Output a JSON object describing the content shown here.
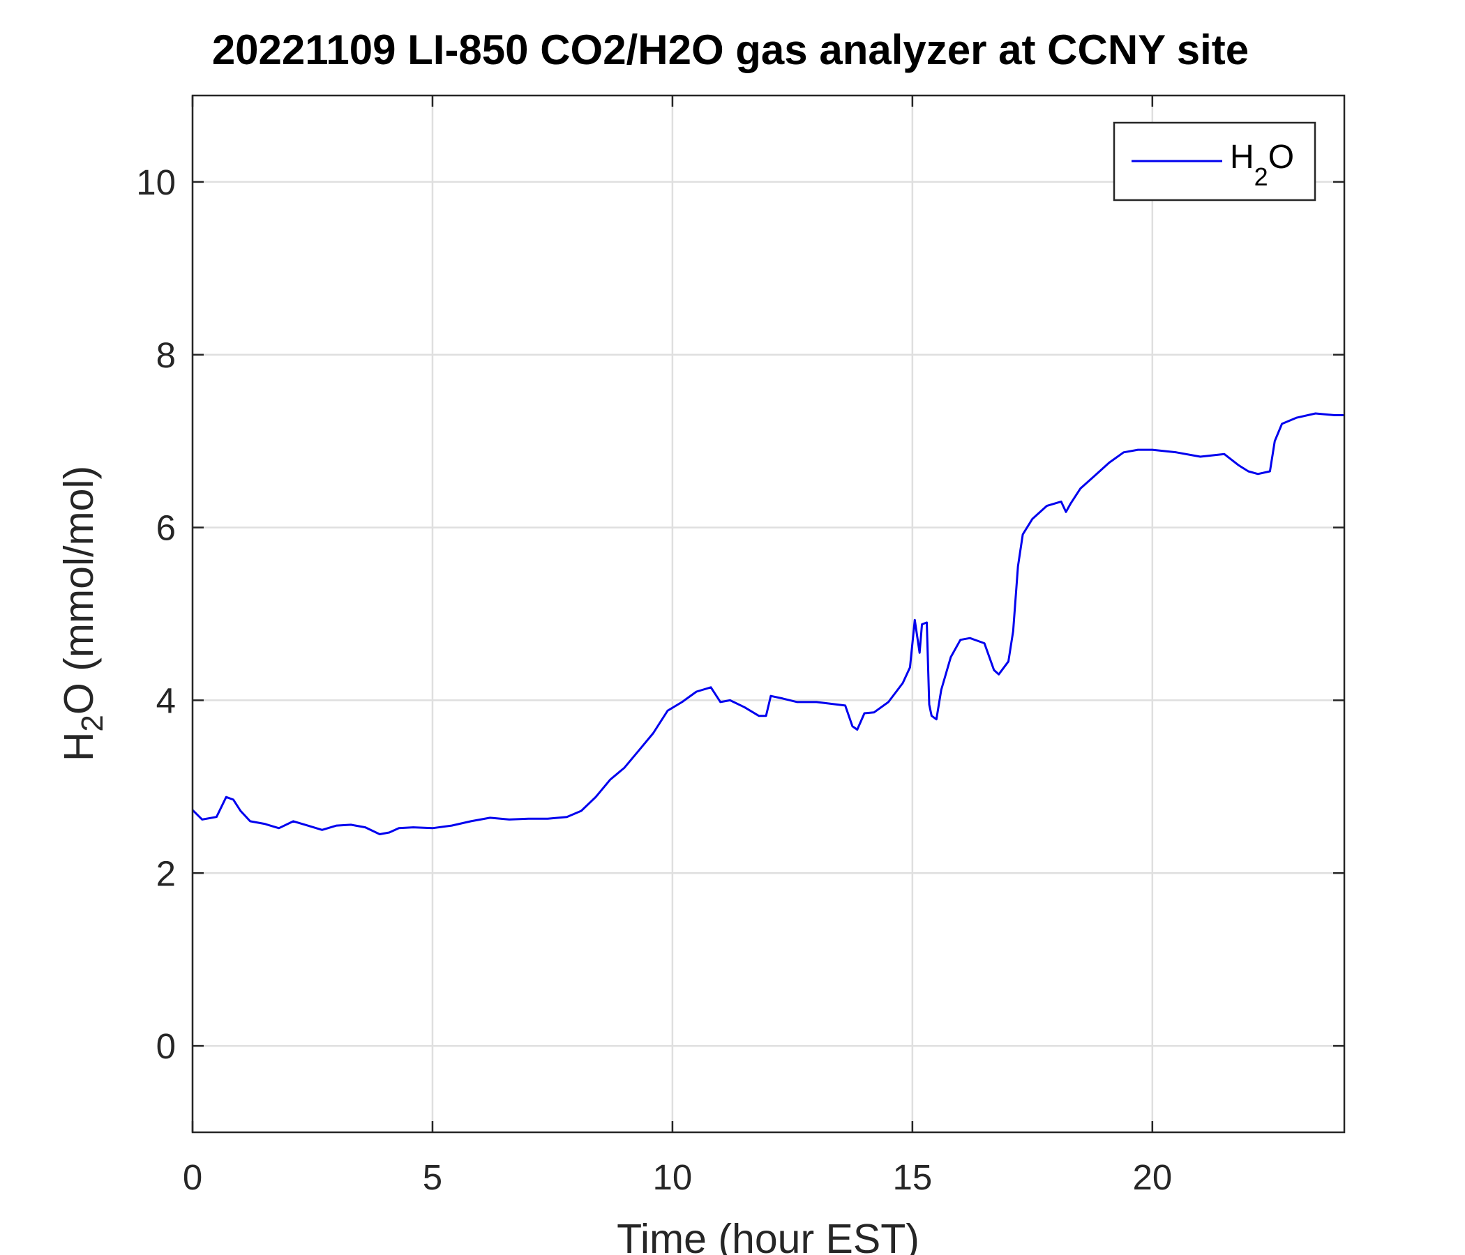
{
  "chart_data": {
    "type": "line",
    "title": "20221109 LI-850 CO2/H2O gas analyzer at CCNY site",
    "xlabel": "Time (hour EST)",
    "ylabel": {
      "base": "H",
      "subscript": "2",
      "rest": "O (mmol/mol)"
    },
    "xlim": [
      0,
      24
    ],
    "ylim": [
      -1,
      11
    ],
    "xticks": [
      0,
      5,
      10,
      15,
      20
    ],
    "yticks": [
      0,
      2,
      4,
      6,
      8,
      10
    ],
    "xtick_labels": [
      "0",
      "5",
      "10",
      "15",
      "20"
    ],
    "ytick_labels": [
      "0",
      "2",
      "4",
      "6",
      "8",
      "10"
    ],
    "grid": true,
    "legend": {
      "position": "top-right",
      "entries": [
        {
          "base": "H",
          "subscript": "2",
          "rest": "O",
          "color": "#0000ee"
        }
      ]
    },
    "series": [
      {
        "color": "#0000ee",
        "x": [
          0,
          0.2,
          0.5,
          0.7,
          0.85,
          1,
          1.2,
          1.5,
          1.8,
          2.1,
          2.4,
          2.7,
          3,
          3.3,
          3.6,
          3.9,
          4.1,
          4.3,
          4.6,
          5,
          5.4,
          5.8,
          6.2,
          6.6,
          7,
          7.4,
          7.8,
          8.1,
          8.4,
          8.7,
          9,
          9.3,
          9.6,
          9.9,
          10.2,
          10.5,
          10.8,
          11,
          11.2,
          11.5,
          11.8,
          11.95,
          12.05,
          12.3,
          12.6,
          13,
          13.3,
          13.6,
          13.75,
          13.85,
          14,
          14.2,
          14.5,
          14.8,
          14.95,
          15.05,
          15.15,
          15.2,
          15.3,
          15.35,
          15.4,
          15.5,
          15.6,
          15.8,
          16,
          16.2,
          16.5,
          16.7,
          16.8,
          17,
          17.1,
          17.2,
          17.3,
          17.5,
          17.8,
          18.1,
          18.2,
          18.3,
          18.5,
          18.8,
          19.1,
          19.4,
          19.7,
          20,
          20.5,
          21,
          21.5,
          21.8,
          22,
          22.2,
          22.45,
          22.55,
          22.7,
          23,
          23.4,
          23.8,
          24
        ],
        "values": [
          2.73,
          2.62,
          2.65,
          2.88,
          2.85,
          2.72,
          2.6,
          2.57,
          2.52,
          2.6,
          2.55,
          2.5,
          2.55,
          2.56,
          2.53,
          2.45,
          2.47,
          2.52,
          2.53,
          2.52,
          2.55,
          2.6,
          2.64,
          2.62,
          2.63,
          2.63,
          2.65,
          2.72,
          2.88,
          3.08,
          3.22,
          3.42,
          3.62,
          3.88,
          3.98,
          4.1,
          4.15,
          3.98,
          4.0,
          3.92,
          3.82,
          3.82,
          4.05,
          4.02,
          3.98,
          3.98,
          3.96,
          3.94,
          3.7,
          3.66,
          3.85,
          3.86,
          3.98,
          4.2,
          4.38,
          4.93,
          4.55,
          4.88,
          4.9,
          3.95,
          3.82,
          3.78,
          4.12,
          4.5,
          4.7,
          4.72,
          4.66,
          4.35,
          4.3,
          4.45,
          4.8,
          5.55,
          5.92,
          6.1,
          6.25,
          6.3,
          6.18,
          6.28,
          6.45,
          6.6,
          6.75,
          6.87,
          6.9,
          6.9,
          6.87,
          6.82,
          6.85,
          6.72,
          6.65,
          6.62,
          6.65,
          7.0,
          7.2,
          7.27,
          7.32,
          7.3,
          7.3
        ]
      }
    ]
  }
}
